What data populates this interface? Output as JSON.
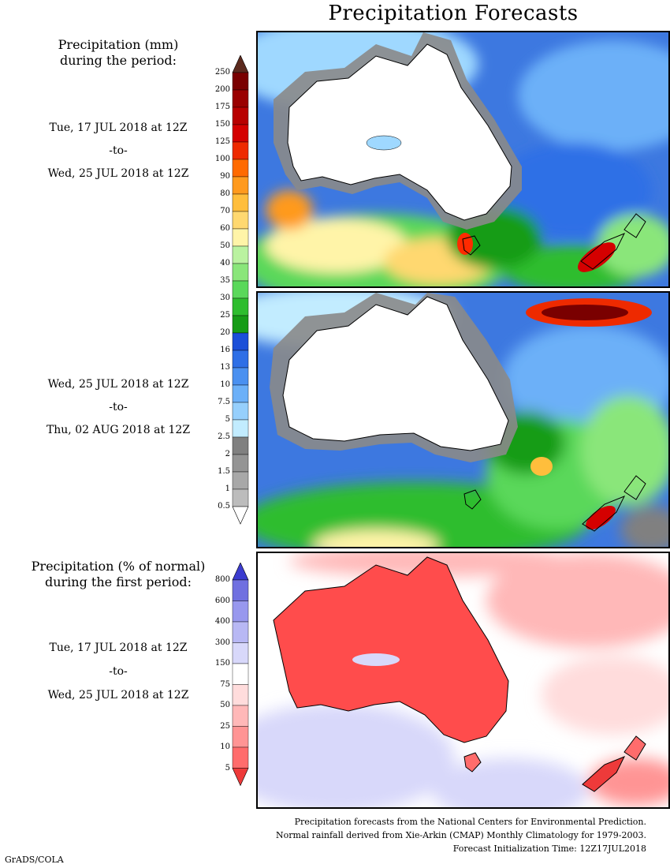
{
  "title": "Precipitation Forecasts",
  "section1": {
    "heading_line1": "Precipitation (mm)",
    "heading_line2": "during the period:",
    "from": "Tue, 17 JUL 2018 at 12Z",
    "sep": "-to-",
    "to": "Wed, 25 JUL 2018 at 12Z"
  },
  "section2": {
    "from": "Wed, 25 JUL 2018 at 12Z",
    "sep": "-to-",
    "to": "Thu, 02 AUG 2018 at 12Z"
  },
  "section3": {
    "heading_line1": "Precipitation (% of normal)",
    "heading_line2": "during the first period:",
    "from": "Tue, 17 JUL 2018 at 12Z",
    "sep": "-to-",
    "to": "Wed, 25 JUL 2018 at 12Z"
  },
  "precip_legend": {
    "labels": [
      "250",
      "200",
      "175",
      "150",
      "125",
      "100",
      "90",
      "80",
      "70",
      "60",
      "50",
      "40",
      "35",
      "30",
      "25",
      "20",
      "16",
      "13",
      "10",
      "7.5",
      "5",
      "2.5",
      "2",
      "1.5",
      "1",
      "0.5"
    ],
    "colors": [
      "#5c2a1e",
      "#7a0000",
      "#9a0000",
      "#b80000",
      "#d40000",
      "#ee2a00",
      "#ff6a00",
      "#ff9a1e",
      "#ffbe3c",
      "#ffd870",
      "#fff4a8",
      "#baf2a0",
      "#8ae67a",
      "#5ad85a",
      "#2ebd2e",
      "#169c16",
      "#1b4fd8",
      "#2e6fe6",
      "#4a90f0",
      "#6cb0f8",
      "#96cffc",
      "#c2ecff",
      "#808080",
      "#949494",
      "#a8a8a8",
      "#bcbcbc",
      "#ffffff"
    ]
  },
  "pct_legend": {
    "labels": [
      "800",
      "600",
      "400",
      "300",
      "150",
      "75",
      "50",
      "25",
      "10",
      "5"
    ],
    "colors": [
      "#3c3ccf",
      "#7070e0",
      "#9898ee",
      "#b8b8f4",
      "#d8d8fa",
      "#ffffff",
      "#ffdcdc",
      "#ffb8b8",
      "#ff9494",
      "#ff6c6c",
      "#ee3a3a"
    ]
  },
  "footer": {
    "line1": "Precipitation forecasts from the National Centers for Environmental Prediction.",
    "line2": "Normal rainfall derived from Xie-Arkin (CMAP) Monthly Climatology for 1979-2003.",
    "line3": "Forecast Initialization Time: 12Z17JUL2018"
  },
  "credit": "GrADS/COLA"
}
